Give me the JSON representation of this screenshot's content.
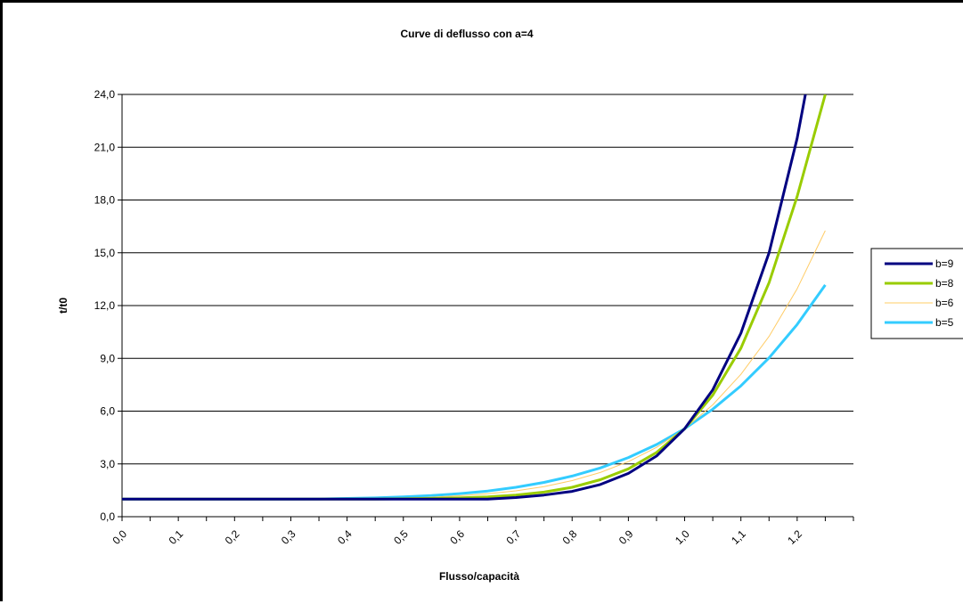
{
  "chart_data": {
    "type": "line",
    "title": "Curve di deflusso con a=4",
    "xlabel": "Flusso/capacità",
    "ylabel": "t/t0",
    "x": [
      0.0,
      0.05,
      0.1,
      0.15,
      0.2,
      0.25,
      0.3,
      0.35,
      0.4,
      0.45,
      0.5,
      0.55,
      0.6,
      0.65,
      0.7,
      0.75,
      0.8,
      0.85,
      0.9,
      0.95,
      1.0,
      1.05,
      1.1,
      1.15,
      1.2,
      1.25
    ],
    "x_tick_labels": [
      "0,0",
      "0,1",
      "0,2",
      "0,3",
      "0,4",
      "0,5",
      "0,6",
      "0,7",
      "0,8",
      "0,9",
      "1,0",
      "1,1",
      "1,2"
    ],
    "y_tick_labels": [
      "0,0",
      "3,0",
      "6,0",
      "9,0",
      "12,0",
      "15,0",
      "18,0",
      "21,0",
      "24,0"
    ],
    "xlim": [
      0,
      1.3
    ],
    "ylim": [
      0,
      24
    ],
    "y_ticks": [
      0,
      3,
      6,
      9,
      12,
      15,
      18,
      21,
      24
    ],
    "grid": "horizontal",
    "legend_position": "right",
    "series": [
      {
        "name": "b=9",
        "color": "#000080",
        "values": [
          1.0,
          1.0,
          1.0,
          1.0,
          1.0,
          1.0,
          1.0,
          1.0,
          1.0,
          1.0,
          1.0,
          1.0,
          1.0,
          1.0,
          1.09,
          1.23,
          1.44,
          1.83,
          2.46,
          3.45,
          5.0,
          7.21,
          10.43,
          15.0,
          21.5,
          30.0
        ]
      },
      {
        "name": "b=8",
        "color": "#99CC00",
        "values": [
          1.0,
          1.0,
          1.0,
          1.0,
          1.0,
          1.0,
          1.0,
          1.0,
          1.0,
          1.0,
          1.02,
          1.04,
          1.07,
          1.13,
          1.23,
          1.4,
          1.67,
          2.1,
          2.72,
          3.65,
          5.0,
          6.91,
          9.58,
          13.3,
          18.2,
          24.0
        ]
      },
      {
        "name": "b=6",
        "color": "#FFCC66",
        "values": [
          1.0,
          1.0,
          1.0,
          1.0,
          1.0,
          1.0,
          1.0,
          1.0,
          1.0,
          1.03,
          1.06,
          1.11,
          1.19,
          1.3,
          1.47,
          1.71,
          2.05,
          2.51,
          3.13,
          3.94,
          5.0,
          6.36,
          8.09,
          10.25,
          12.95,
          16.26
        ]
      },
      {
        "name": "b=5",
        "color": "#33CCFF",
        "values": [
          1.0,
          1.0,
          1.0,
          1.0,
          1.0,
          1.0,
          1.0,
          1.01,
          1.04,
          1.07,
          1.13,
          1.2,
          1.31,
          1.46,
          1.67,
          1.95,
          2.31,
          2.77,
          3.36,
          4.1,
          5.0,
          6.11,
          7.44,
          9.03,
          10.92,
          13.17
        ]
      }
    ]
  }
}
